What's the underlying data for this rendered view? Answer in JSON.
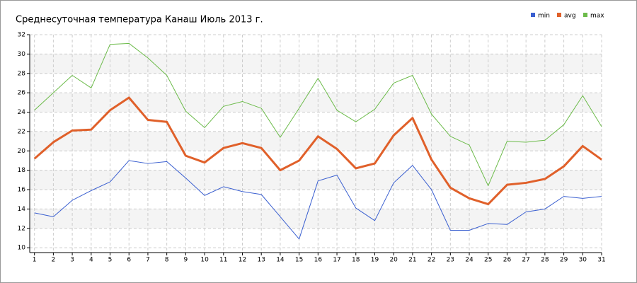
{
  "chart_data": {
    "type": "line",
    "title": "Среднесуточная температура Канаш  Июль 2013 г.",
    "x": [
      1,
      2,
      3,
      4,
      5,
      6,
      7,
      8,
      9,
      10,
      11,
      12,
      13,
      14,
      15,
      16,
      17,
      18,
      19,
      20,
      21,
      22,
      23,
      24,
      25,
      26,
      27,
      28,
      29,
      30,
      31
    ],
    "series": [
      {
        "name": "min",
        "color": "#3a5fd0",
        "width": 1,
        "values": [
          13.6,
          13.2,
          14.9,
          15.9,
          16.8,
          19.0,
          18.7,
          18.9,
          17.2,
          15.4,
          16.3,
          15.8,
          15.5,
          13.2,
          10.9,
          16.9,
          17.5,
          14.1,
          12.8,
          16.7,
          18.5,
          16.0,
          11.8,
          11.8,
          12.5,
          12.4,
          13.7,
          14.0,
          15.3,
          15.1,
          15.3
        ]
      },
      {
        "name": "avg",
        "color": "#e0602a",
        "width": 3,
        "values": [
          19.2,
          20.9,
          22.1,
          22.2,
          24.2,
          25.5,
          23.2,
          23.0,
          19.5,
          18.8,
          20.3,
          20.8,
          20.3,
          18.0,
          19.0,
          21.5,
          20.2,
          18.2,
          18.7,
          21.6,
          23.4,
          19.1,
          16.2,
          15.1,
          14.5,
          16.5,
          16.7,
          17.1,
          18.4,
          20.5,
          19.1
        ]
      },
      {
        "name": "max",
        "color": "#6cbb4a",
        "width": 1,
        "values": [
          24.2,
          26.0,
          27.8,
          26.5,
          31.0,
          31.1,
          29.6,
          27.8,
          24.1,
          22.4,
          24.6,
          25.1,
          24.4,
          21.4,
          24.4,
          27.5,
          24.2,
          23.0,
          24.3,
          27.0,
          27.8,
          23.8,
          21.5,
          20.6,
          16.4,
          21.0,
          20.9,
          21.1,
          22.7,
          25.7,
          22.5
        ]
      }
    ],
    "xlim": [
      0.75,
      31
    ],
    "xticks": [
      1,
      2,
      3,
      4,
      5,
      6,
      7,
      8,
      9,
      10,
      11,
      12,
      13,
      14,
      15,
      16,
      17,
      18,
      19,
      20,
      21,
      22,
      23,
      24,
      25,
      26,
      27,
      28,
      29,
      30,
      31
    ],
    "ylim": [
      9.5,
      32
    ],
    "yticks": [
      10,
      12,
      14,
      16,
      18,
      20,
      22,
      24,
      26,
      28,
      30,
      32
    ],
    "grid": true,
    "legend": "top-right"
  }
}
